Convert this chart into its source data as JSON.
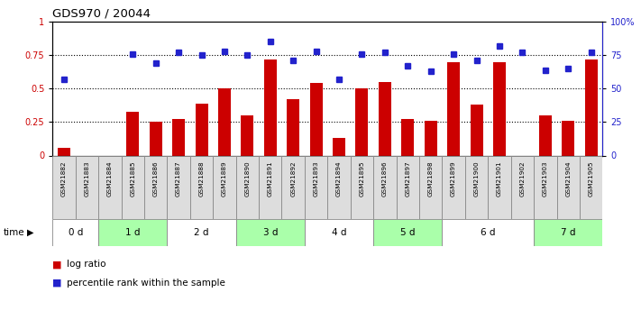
{
  "title": "GDS970 / 20044",
  "samples": [
    "GSM21882",
    "GSM21883",
    "GSM21884",
    "GSM21885",
    "GSM21886",
    "GSM21887",
    "GSM21888",
    "GSM21889",
    "GSM21890",
    "GSM21891",
    "GSM21892",
    "GSM21893",
    "GSM21894",
    "GSM21895",
    "GSM21896",
    "GSM21897",
    "GSM21898",
    "GSM21899",
    "GSM21900",
    "GSM21901",
    "GSM21902",
    "GSM21903",
    "GSM21904",
    "GSM21905"
  ],
  "log_ratio": [
    0.06,
    0.0,
    0.0,
    0.33,
    0.25,
    0.27,
    0.39,
    0.5,
    0.3,
    0.72,
    0.42,
    0.54,
    0.13,
    0.5,
    0.55,
    0.27,
    0.26,
    0.7,
    0.38,
    0.7,
    0.0,
    0.3,
    0.26,
    0.72
  ],
  "percentile_rank": [
    0.57,
    0.0,
    0.0,
    0.76,
    0.69,
    0.77,
    0.75,
    0.78,
    0.75,
    0.85,
    0.71,
    0.78,
    0.57,
    0.76,
    0.77,
    0.67,
    0.63,
    0.76,
    0.71,
    0.82,
    0.77,
    0.64,
    0.65,
    0.77
  ],
  "time_groups": [
    {
      "label": "0 d",
      "start": 0,
      "end": 2,
      "color": "#ffffff"
    },
    {
      "label": "1 d",
      "start": 2,
      "end": 5,
      "color": "#aaffaa"
    },
    {
      "label": "2 d",
      "start": 5,
      "end": 8,
      "color": "#ffffff"
    },
    {
      "label": "3 d",
      "start": 8,
      "end": 11,
      "color": "#aaffaa"
    },
    {
      "label": "4 d",
      "start": 11,
      "end": 14,
      "color": "#ffffff"
    },
    {
      "label": "5 d",
      "start": 14,
      "end": 17,
      "color": "#aaffaa"
    },
    {
      "label": "6 d",
      "start": 17,
      "end": 21,
      "color": "#ffffff"
    },
    {
      "label": "7 d",
      "start": 21,
      "end": 24,
      "color": "#aaffaa"
    }
  ],
  "bar_color": "#cc0000",
  "dot_color": "#2222cc",
  "label_bg_color": "#dddddd",
  "label_border_color": "#888888",
  "left_ytick_vals": [
    0,
    0.25,
    0.5,
    0.75,
    1.0
  ],
  "left_ytick_labels": [
    "0",
    "0.25",
    "0.5",
    "0.75",
    "1"
  ],
  "right_ytick_vals": [
    0,
    25,
    50,
    75,
    100
  ],
  "right_ytick_labels": [
    "0",
    "25",
    "50",
    "75",
    "100%"
  ],
  "legend_log_ratio": "log ratio",
  "legend_percentile": "percentile rank within the sample",
  "background_color": "#ffffff"
}
